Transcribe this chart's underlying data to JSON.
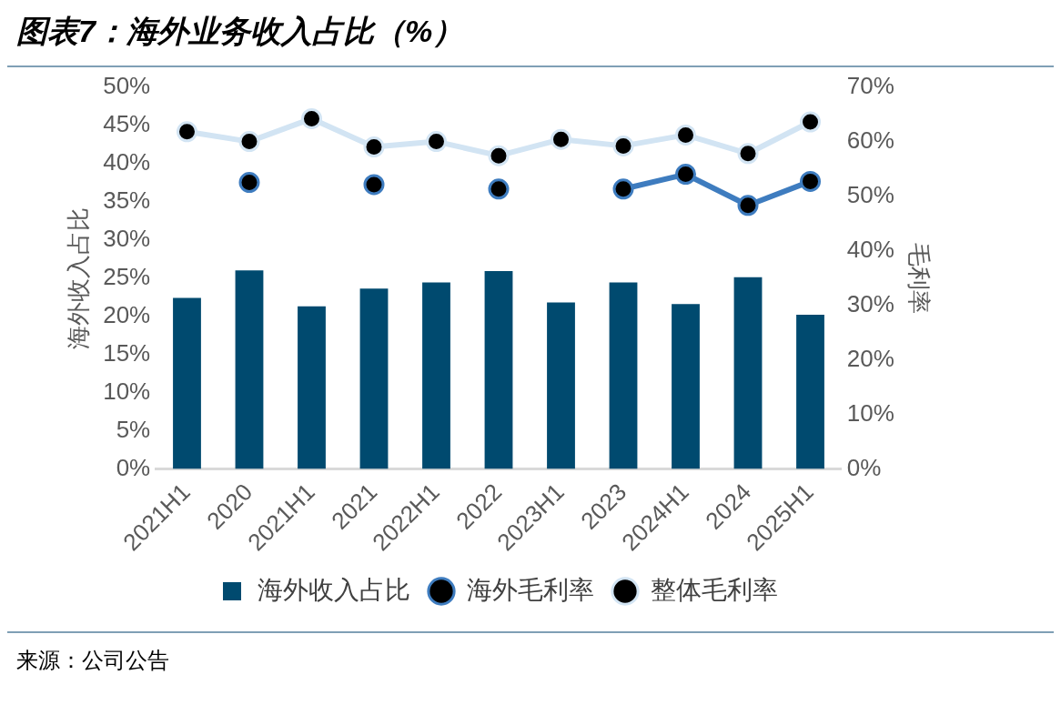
{
  "chart_data": {
    "type": "bar",
    "title": "图表7：海外业务收入占比（%）",
    "categories": [
      "2021H1",
      "2020",
      "2021H1",
      "2021",
      "2022H1",
      "2022",
      "2023H1",
      "2023",
      "2024H1",
      "2024",
      "2025H1"
    ],
    "series": [
      {
        "name": "海外收入占比",
        "color": "#004a6f",
        "values": [
          22.4,
          26.0,
          21.3,
          23.6,
          24.4,
          25.9,
          21.8,
          24.4,
          21.6,
          25.1,
          20.2
        ]
      },
      {
        "name": "海外毛利率",
        "type": "line",
        "axis": "y2",
        "color": "#3e7cbf",
        "values": [
          null,
          52.5,
          null,
          52.1,
          null,
          51.3,
          null,
          51.3,
          54.0,
          48.3,
          52.7
        ]
      },
      {
        "name": "整体毛利率",
        "type": "line",
        "axis": "y2",
        "color": "#d2e4f3",
        "values": [
          61.8,
          60.0,
          64.2,
          59.0,
          60.0,
          57.4,
          60.4,
          59.2,
          61.2,
          57.8,
          63.6
        ]
      }
    ],
    "ylabel": "海外收入占比",
    "y2label": "毛利率",
    "ylim": [
      0,
      50
    ],
    "yticks": [
      {
        "value": 0,
        "label": "0%"
      },
      {
        "value": 5,
        "label": "5%"
      },
      {
        "value": 10,
        "label": "10%"
      },
      {
        "value": 15,
        "label": "15%"
      },
      {
        "value": 20,
        "label": "20%"
      },
      {
        "value": 25,
        "label": "25%"
      },
      {
        "value": 30,
        "label": "30%"
      },
      {
        "value": 35,
        "label": "35%"
      },
      {
        "value": 40,
        "label": "40%"
      },
      {
        "value": 45,
        "label": "45%"
      },
      {
        "value": 50,
        "label": "50%"
      }
    ],
    "y2lim": [
      0,
      70
    ],
    "y2ticks": [
      {
        "value": 0,
        "label": "0%"
      },
      {
        "value": 10,
        "label": "10%"
      },
      {
        "value": 20,
        "label": "20%"
      },
      {
        "value": 30,
        "label": "30%"
      },
      {
        "value": 40,
        "label": "40%"
      },
      {
        "value": 50,
        "label": "50%"
      },
      {
        "value": 60,
        "label": "60%"
      },
      {
        "value": 70,
        "label": "70%"
      }
    ],
    "marker": "circle",
    "grid": false,
    "legend": "bottom",
    "annotations": [
      "来源：公司公告"
    ]
  }
}
